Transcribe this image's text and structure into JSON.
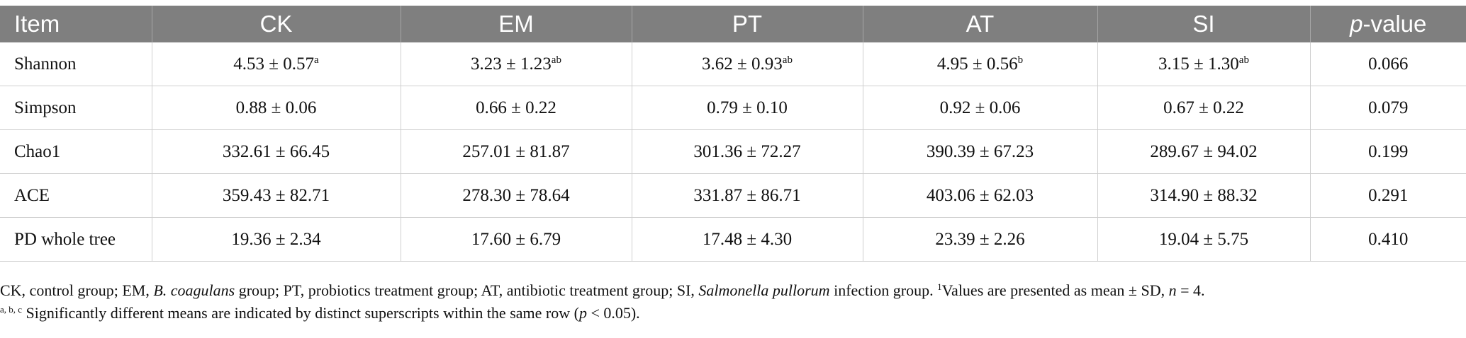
{
  "table": {
    "headers": [
      "Item",
      "CK",
      "EM",
      "PT",
      "AT",
      "SI"
    ],
    "pvalue_header": {
      "italic": "p",
      "rest": "-value"
    },
    "rows": [
      {
        "label": "Shannon",
        "cells": [
          {
            "v": "4.53 ± 0.57",
            "s": "a"
          },
          {
            "v": "3.23 ± 1.23",
            "s": "ab"
          },
          {
            "v": "3.62 ± 0.93",
            "s": "ab"
          },
          {
            "v": "4.95 ± 0.56",
            "s": "b"
          },
          {
            "v": "3.15 ± 1.30",
            "s": "ab"
          }
        ],
        "p": "0.066"
      },
      {
        "label": "Simpson",
        "cells": [
          {
            "v": "0.88 ± 0.06",
            "s": ""
          },
          {
            "v": "0.66 ± 0.22",
            "s": ""
          },
          {
            "v": "0.79 ± 0.10",
            "s": ""
          },
          {
            "v": "0.92 ± 0.06",
            "s": ""
          },
          {
            "v": "0.67 ± 0.22",
            "s": ""
          }
        ],
        "p": "0.079"
      },
      {
        "label": "Chao1",
        "cells": [
          {
            "v": "332.61 ± 66.45",
            "s": ""
          },
          {
            "v": "257.01 ± 81.87",
            "s": ""
          },
          {
            "v": "301.36 ± 72.27",
            "s": ""
          },
          {
            "v": "390.39 ± 67.23",
            "s": ""
          },
          {
            "v": "289.67 ± 94.02",
            "s": ""
          }
        ],
        "p": "0.199"
      },
      {
        "label": "ACE",
        "cells": [
          {
            "v": "359.43 ± 82.71",
            "s": ""
          },
          {
            "v": "278.30 ± 78.64",
            "s": ""
          },
          {
            "v": "331.87 ± 86.71",
            "s": ""
          },
          {
            "v": "403.06 ± 62.03",
            "s": ""
          },
          {
            "v": "314.90 ± 88.32",
            "s": ""
          }
        ],
        "p": "0.291"
      },
      {
        "label": "PD whole tree",
        "cells": [
          {
            "v": "19.36 ± 2.34",
            "s": ""
          },
          {
            "v": "17.60 ± 6.79",
            "s": ""
          },
          {
            "v": "17.48 ± 4.30",
            "s": ""
          },
          {
            "v": "23.39 ± 2.26",
            "s": ""
          },
          {
            "v": "19.04 ± 5.75",
            "s": ""
          }
        ],
        "p": "0.410"
      }
    ]
  },
  "footnote": {
    "line1": {
      "a": "CK, control group; EM, ",
      "b_italic": "B. coagulans",
      "c": " group; PT, probiotics treatment group; AT, antibiotic treatment group; SI, ",
      "d_italic": "Salmonella pullorum",
      "e": " infection group. ",
      "f_sup": "1",
      "g": "Values are presented as mean ± SD, ",
      "h_italic": "n",
      "i": " = 4."
    },
    "line2": {
      "a_sup": "a, b, c",
      "b": " Significantly different means are indicated by distinct superscripts within the same row (",
      "c_italic": "p",
      "d": " < 0.05)."
    }
  },
  "colors": {
    "header_bg": "#7f7f7f",
    "header_text": "#ffffff",
    "grid": "#cfcfcf"
  }
}
